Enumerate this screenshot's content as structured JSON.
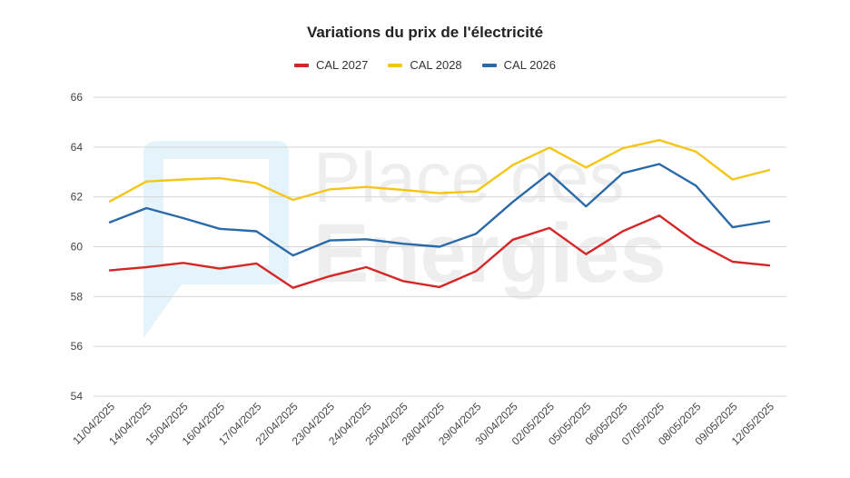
{
  "chart_data": {
    "type": "line",
    "title": "Variations du prix de l'électricité",
    "xlabel": "",
    "ylabel": "",
    "ylim": [
      54,
      66
    ],
    "yticks": [
      54,
      56,
      58,
      60,
      62,
      64,
      66
    ],
    "grid": true,
    "legend_position": "top",
    "categories": [
      "11/04/2025",
      "14/04/2025",
      "15/04/2025",
      "16/04/2025",
      "17/04/2025",
      "22/04/2025",
      "23/04/2025",
      "24/04/2025",
      "25/04/2025",
      "28/04/2025",
      "29/04/2025",
      "30/04/2025",
      "02/05/2025",
      "05/05/2025",
      "06/05/2025",
      "07/05/2025",
      "08/05/2025",
      "09/05/2025",
      "12/05/2025"
    ],
    "series": [
      {
        "name": "CAL 2027",
        "color": "#d62728",
        "values": [
          59.05,
          59.18,
          59.35,
          59.12,
          59.33,
          58.35,
          58.82,
          59.18,
          58.62,
          58.38,
          59.02,
          60.28,
          60.75,
          59.7,
          60.62,
          61.25,
          60.18,
          59.4,
          59.25
        ]
      },
      {
        "name": "CAL 2028",
        "color": "#f5c518",
        "values": [
          61.82,
          62.62,
          62.7,
          62.75,
          62.55,
          61.88,
          62.3,
          62.4,
          62.28,
          62.15,
          62.22,
          63.28,
          63.98,
          63.18,
          63.95,
          64.28,
          63.82,
          62.7,
          63.08
        ]
      },
      {
        "name": "CAL 2026",
        "color": "#2b6aa8",
        "values": [
          60.98,
          61.55,
          61.15,
          60.72,
          60.62,
          59.65,
          60.25,
          60.3,
          60.12,
          60.0,
          60.52,
          61.8,
          62.95,
          61.62,
          62.95,
          63.32,
          62.45,
          60.78,
          61.02
        ]
      }
    ]
  },
  "watermark": {
    "line1": "Place des",
    "line2": "Energies",
    "logo_color": "#e4f4fa"
  }
}
